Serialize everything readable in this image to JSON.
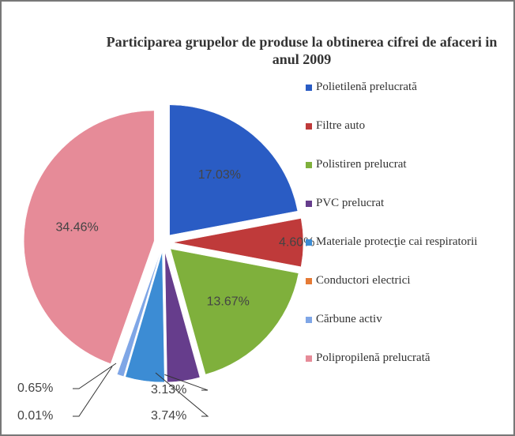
{
  "chart_data": {
    "type": "pie",
    "title": "Participarea grupelor de produse la obtinerea cifrei de afaceri in anul 2009",
    "categories": [
      "Polietilenă prelucrată",
      "Filtre auto",
      "Polistiren prelucrat",
      "PVC prelucrat",
      "Materiale protecţie cai respiratorii",
      "Conductori electrici",
      "Cărbune activ",
      "Polipropilenă prelucrată"
    ],
    "values": [
      17.03,
      4.6,
      13.67,
      3.13,
      3.74,
      0.01,
      0.65,
      34.46
    ],
    "value_labels": [
      "17.03%",
      "4.60%",
      "13.67%",
      "3.13%",
      "3.74%",
      "0.01%",
      "0.65%",
      "34.46%"
    ],
    "colors": [
      "#2a5cc4",
      "#bf3a3a",
      "#7fb03c",
      "#663d8c",
      "#3c8cd4",
      "#e57a35",
      "#7fa6e6",
      "#e68b98"
    ],
    "legend": "right"
  }
}
